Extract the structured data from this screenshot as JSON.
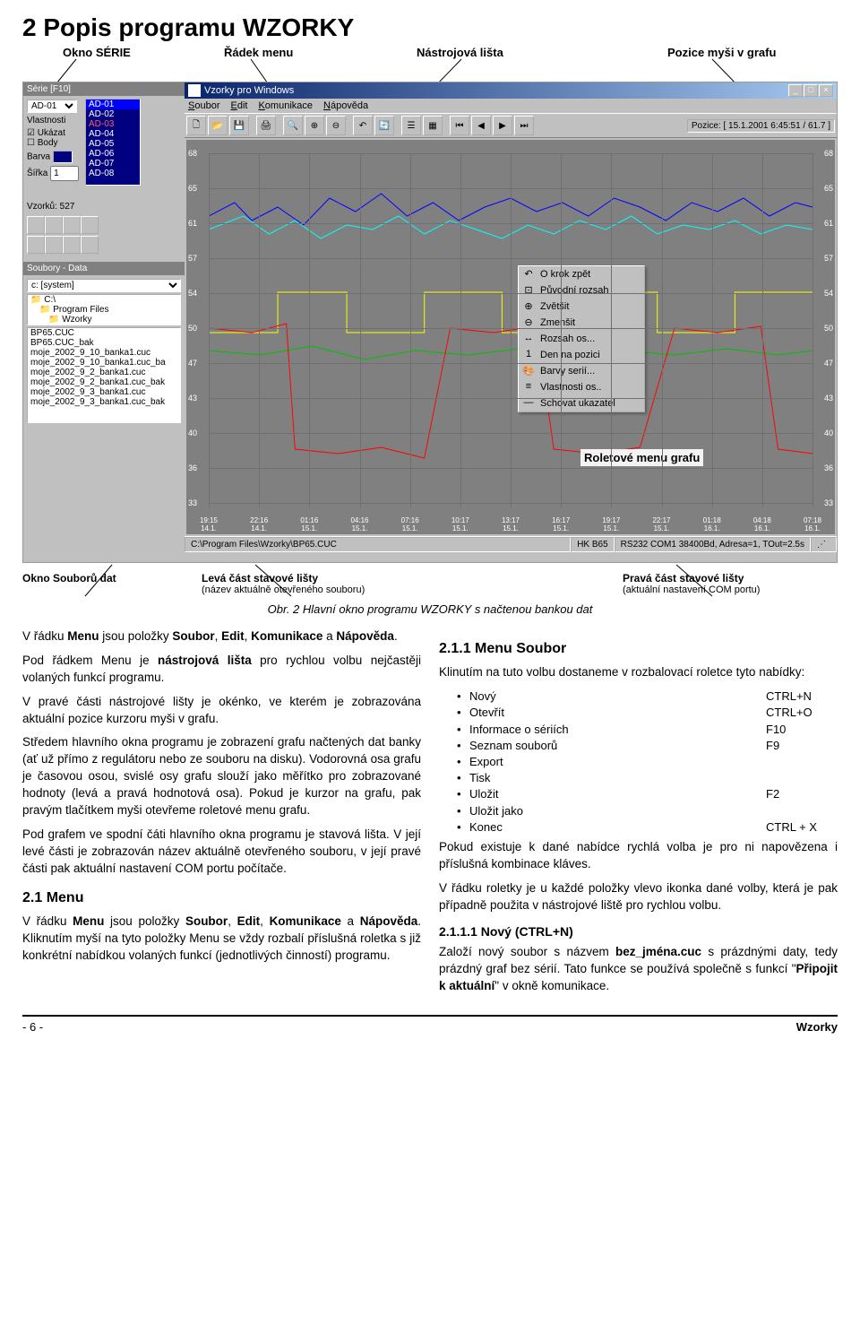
{
  "heading": "2   Popis programu WZORKY",
  "annotations": {
    "serie": "Okno SÉRIE",
    "menu_row": "Řádek menu",
    "toolbar": "Nástrojová lišta",
    "mouse_pos": "Pozice myši v grafu",
    "roll_menu": "Roletové menu grafu",
    "files_win": "Okno Souborů dat",
    "status_left_t": "Levá část stavové lišty",
    "status_left_s": "(název aktuálně otevřeného souboru)",
    "status_right_t": "Pravá část stavové lišty",
    "status_right_s": "(aktuální nastavení COM portu)"
  },
  "figcap": "Obr. 2  Hlavní okno programu WZORKY s načtenou bankou dat",
  "serie_panel": {
    "title": "Série [F10]",
    "selected": "AD-01",
    "items": [
      "AD-01",
      "AD-02",
      "AD-03",
      "AD-04",
      "AD-05",
      "AD-06",
      "AD-07",
      "AD-08"
    ],
    "lbl_vlast": "Vlastnosti",
    "chk_ukazat": "Ukázat",
    "chk_body": "Body",
    "lbl_barva": "Barva",
    "lbl_sirka": "Šířka",
    "sirka_val": "1",
    "vzorku": "Vzorků: 527"
  },
  "files_panel": {
    "title": "Soubory - Data",
    "drive": "c: [system]",
    "dirs": [
      "C:\\",
      "Program Files",
      "Wzorky"
    ],
    "files": [
      "BP65.CUC",
      "BP65.CUC_bak",
      "moje_2002_9_10_banka1.cuc",
      "moje_2002_9_10_banka1.cuc_ba",
      "moje_2002_9_2_banka1.cuc",
      "moje_2002_9_2_banka1.cuc_bak",
      "moje_2002_9_3_banka1.cuc",
      "moje_2002_9_3_banka1.cuc_bak"
    ]
  },
  "main_win": {
    "title": "Vzorky pro Windows",
    "menus": [
      "Soubor",
      "Edit",
      "Komunikace",
      "Nápověda"
    ],
    "pos_label": "Pozice:",
    "pos_value": "[ 15.1.2001 6:45:51 / 61.7 ]",
    "status_left": "C:\\Program Files\\Wzorky\\BP65.CUC",
    "status_mid": "HK B65",
    "status_right": "RS232 COM1 38400Bd, Adresa=1, TOut=2.5s"
  },
  "chart": {
    "y_ticks": [
      "68",
      "65",
      "61",
      "57",
      "54",
      "50",
      "47",
      "43",
      "40",
      "36",
      "33"
    ],
    "x_ticks": [
      {
        "t": "19:15",
        "d": "14.1."
      },
      {
        "t": "22:16",
        "d": "14.1."
      },
      {
        "t": "01:16",
        "d": "15.1."
      },
      {
        "t": "04:16",
        "d": "15.1."
      },
      {
        "t": "07:16",
        "d": "15.1."
      },
      {
        "t": "10:17",
        "d": "15.1."
      },
      {
        "t": "13:17",
        "d": "15.1."
      },
      {
        "t": "16:17",
        "d": "15.1."
      },
      {
        "t": "19:17",
        "d": "15.1."
      },
      {
        "t": "22:17",
        "d": "15.1."
      },
      {
        "t": "01:18",
        "d": "16.1."
      },
      {
        "t": "04:18",
        "d": "16.1."
      },
      {
        "t": "07:18",
        "d": "16.1."
      }
    ],
    "colors": {
      "blue": "#0000ff",
      "cyan": "#00ffff",
      "red": "#ff0000",
      "yellow": "#ffff00",
      "green": "#00c000"
    }
  },
  "ctx_menu": [
    "O krok zpět",
    "Původní rozsah",
    "Zvětšit",
    "Zmenšit",
    "Rozsah os...",
    "Den na pozici",
    "Barvy serií...",
    "Vlastnosti os..",
    "Schovat ukazatel"
  ],
  "body": {
    "p1a": "V řádku ",
    "p1b": "Menu",
    "p1c": " jsou položky ",
    "p1d": "Soubor",
    "p1e": ", ",
    "p1f": "Edit",
    "p1g": ", ",
    "p1h": "Komunikace",
    "p1i": " a ",
    "p1j": "Nápověda",
    "p1k": ".",
    "p2a": "Pod řádkem Menu je ",
    "p2b": "nástrojová lišta",
    "p2c": " pro rychlou volbu nejčastěji volaných funkcí programu.",
    "p3": "V pravé části nástrojové lišty je okénko, ve kterém je zobrazována aktuální pozice kurzoru myši v grafu.",
    "p4": "Středem hlavního okna programu je zobrazení grafu načtených dat banky (ať už přímo z regulátoru nebo ze souboru na disku). Vodorovná osa grafu je časovou osou, svislé osy grafu slouží jako měřítko pro zobrazované hodnoty (levá a pravá hodnotová osa). Pokud je kurzor na grafu, pak pravým tlačítkem myši otevřeme roletové menu grafu.",
    "p5": "Pod grafem ve spodní čáti hlavního okna programu je stavová lišta. V její levé části je zobrazován název aktuálně otevřeného souboru, v její pravé části pak aktuální nastavení COM portu počítače.",
    "h_menu": "2.1   Menu",
    "p6a": "V řádku ",
    "p6b": "Menu",
    "p6c": " jsou položky ",
    "p6d": "Soubor",
    "p6e": ", ",
    "p6f": "Edit",
    "p6g": ", ",
    "p6h": "Komunikace",
    "p6i": " a ",
    "p6j": "Nápověda",
    "p6k": ". Kliknutím myší na tyto položky Menu se vždy rozbalí příslušná roletka s již konkrétní nabídkou volaných funkcí (jednotlivých činností) programu.",
    "h_soubor": "2.1.1   Menu Soubor",
    "p7": "Klinutím na tuto volbu dostaneme v rozbalovací roletce tyto nabídky:",
    "menu_items": [
      {
        "n": "Nový",
        "k": "CTRL+N"
      },
      {
        "n": "Otevřít",
        "k": "CTRL+O"
      },
      {
        "n": "Informace o sériích",
        "k": "F10"
      },
      {
        "n": "Seznam souborů",
        "k": "F9"
      },
      {
        "n": "Export",
        "k": ""
      },
      {
        "n": "Tisk",
        "k": ""
      },
      {
        "n": "Uložit",
        "k": "F2"
      },
      {
        "n": "Uložit jako",
        "k": ""
      },
      {
        "n": "Konec",
        "k": "CTRL + X"
      }
    ],
    "p8": "Pokud existuje k dané nabídce rychlá volba je pro ni napovězena i příslušná kombinace kláves.",
    "p9": "V řádku roletky je u každé položky vlevo ikonka dané volby, která je pak případně použita v nástrojové liště pro rychlou volbu.",
    "h_novy": "2.1.1.1   Nový (CTRL+N)",
    "p10a": "Založí nový soubor s názvem ",
    "p10b": "bez_jména.cuc",
    "p10c": " s prázdnými daty, tedy prázdný graf bez sérií. Tato funkce se používá společně s funkcí \"",
    "p10d": "Připojit k aktuální",
    "p10e": "\" v okně komunikace."
  },
  "footer": {
    "left": "- 6 -",
    "right": "Wzorky"
  }
}
